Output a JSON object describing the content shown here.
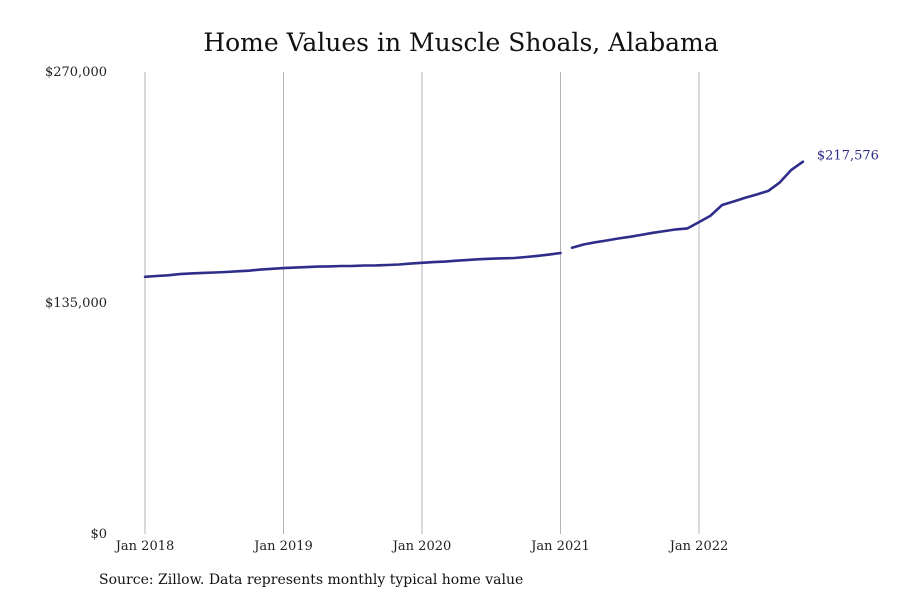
{
  "chart_data": {
    "type": "line",
    "title": "Home Values in Muscle Shoals, Alabama",
    "xlabel": "",
    "ylabel": "",
    "ylim": [
      0,
      270000
    ],
    "y_ticks": [
      {
        "value": 0,
        "label": "$0"
      },
      {
        "value": 135000,
        "label": "$135,000"
      },
      {
        "value": 270000,
        "label": "$270,000"
      }
    ],
    "x_ticks": [
      {
        "value": "2018-01",
        "label": "Jan 2018"
      },
      {
        "value": "2019-01",
        "label": "Jan 2019"
      },
      {
        "value": "2020-01",
        "label": "Jan 2020"
      },
      {
        "value": "2021-01",
        "label": "Jan 2021"
      },
      {
        "value": "2022-01",
        "label": "Jan 2022"
      }
    ],
    "grid": "vertical-at-x-ticks",
    "legend": "none",
    "line_color": "#2e2e8a",
    "series": [
      {
        "segments": [
          [
            {
              "x": "2018-01",
              "y": 150300
            },
            {
              "x": "2018-02",
              "y": 150800
            },
            {
              "x": "2018-03",
              "y": 151200
            },
            {
              "x": "2018-04",
              "y": 151900
            },
            {
              "x": "2018-05",
              "y": 152300
            },
            {
              "x": "2018-06",
              "y": 152600
            },
            {
              "x": "2018-07",
              "y": 152800
            },
            {
              "x": "2018-08",
              "y": 153100
            },
            {
              "x": "2018-09",
              "y": 153500
            },
            {
              "x": "2018-10",
              "y": 153900
            },
            {
              "x": "2018-11",
              "y": 154500
            },
            {
              "x": "2018-12",
              "y": 155000
            },
            {
              "x": "2019-01",
              "y": 155400
            },
            {
              "x": "2019-02",
              "y": 155700
            },
            {
              "x": "2019-03",
              "y": 156000
            },
            {
              "x": "2019-04",
              "y": 156300
            },
            {
              "x": "2019-05",
              "y": 156400
            },
            {
              "x": "2019-06",
              "y": 156600
            },
            {
              "x": "2019-07",
              "y": 156700
            },
            {
              "x": "2019-08",
              "y": 156900
            },
            {
              "x": "2019-09",
              "y": 157000
            },
            {
              "x": "2019-10",
              "y": 157200
            },
            {
              "x": "2019-11",
              "y": 157500
            },
            {
              "x": "2019-12",
              "y": 158000
            },
            {
              "x": "2020-01",
              "y": 158500
            },
            {
              "x": "2020-02",
              "y": 158900
            },
            {
              "x": "2020-03",
              "y": 159200
            },
            {
              "x": "2020-04",
              "y": 159700
            },
            {
              "x": "2020-05",
              "y": 160200
            },
            {
              "x": "2020-06",
              "y": 160600
            },
            {
              "x": "2020-07",
              "y": 160900
            },
            {
              "x": "2020-08",
              "y": 161100
            },
            {
              "x": "2020-09",
              "y": 161300
            },
            {
              "x": "2020-10",
              "y": 161900
            },
            {
              "x": "2020-11",
              "y": 162500
            },
            {
              "x": "2020-12",
              "y": 163300
            },
            {
              "x": "2021-01",
              "y": 164200
            }
          ],
          [
            {
              "x": "2021-02",
              "y": 167300
            },
            {
              "x": "2021-03",
              "y": 169200
            },
            {
              "x": "2021-04",
              "y": 170500
            },
            {
              "x": "2021-05",
              "y": 171500
            },
            {
              "x": "2021-06",
              "y": 172700
            },
            {
              "x": "2021-07",
              "y": 173700
            },
            {
              "x": "2021-08",
              "y": 174800
            },
            {
              "x": "2021-09",
              "y": 176000
            },
            {
              "x": "2021-10",
              "y": 177000
            },
            {
              "x": "2021-11",
              "y": 178000
            },
            {
              "x": "2021-12",
              "y": 178600
            },
            {
              "x": "2022-01",
              "y": 182300
            },
            {
              "x": "2022-02",
              "y": 186000
            },
            {
              "x": "2022-03",
              "y": 192300
            },
            {
              "x": "2022-04",
              "y": 194300
            },
            {
              "x": "2022-05",
              "y": 196500
            },
            {
              "x": "2022-06",
              "y": 198400
            },
            {
              "x": "2022-07",
              "y": 200500
            },
            {
              "x": "2022-08",
              "y": 205500
            },
            {
              "x": "2022-09",
              "y": 212800
            },
            {
              "x": "2022-10",
              "y": 217576
            }
          ]
        ]
      }
    ],
    "end_label": "$217,576",
    "source_note": "Source: Zillow. Data represents monthly typical home value"
  }
}
